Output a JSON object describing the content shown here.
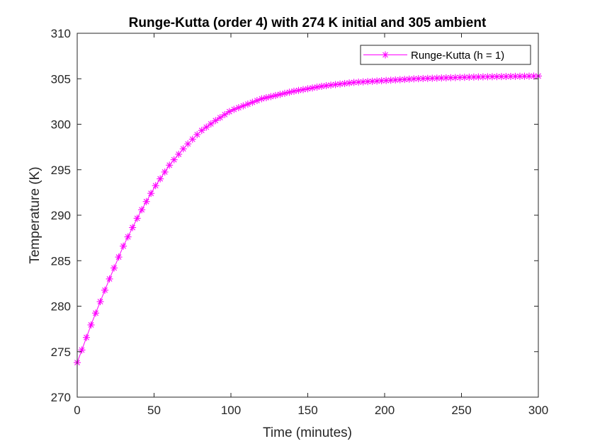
{
  "chart_data": {
    "type": "line",
    "title": "Runge-Kutta (order 4) with 274 K initial and 305 ambient",
    "xlabel": "Time (minutes)",
    "ylabel": "Temperature (K)",
    "xlim": [
      0,
      300
    ],
    "ylim": [
      270,
      310
    ],
    "xticks": [
      0,
      50,
      100,
      150,
      200,
      250,
      300
    ],
    "yticks": [
      270,
      275,
      280,
      285,
      290,
      295,
      300,
      305,
      310
    ],
    "xtick_labels": [
      "0",
      "50",
      "100",
      "150",
      "200",
      "250",
      "300"
    ],
    "ytick_labels": [
      "270",
      "275",
      "280",
      "285",
      "290",
      "295",
      "300",
      "305",
      "310"
    ],
    "grid": false,
    "legend": {
      "location": "top-right",
      "entries": [
        "Runge-Kutta (h = 1)"
      ]
    },
    "series": [
      {
        "name": "Runge-Kutta (h = 1)",
        "color": "#ff00ff",
        "marker": "asterisk",
        "x_start": 0,
        "x_end": 300,
        "x_step": 3,
        "x": [
          0,
          10,
          20,
          30,
          40,
          50,
          60,
          70,
          80,
          90,
          100,
          120,
          140,
          160,
          180,
          200,
          220,
          240,
          260,
          280,
          300
        ],
        "values": [
          273.8,
          278.4,
          282.6,
          286.6,
          290.0,
          293.0,
          295.5,
          297.5,
          299.2,
          300.4,
          301.5,
          302.8,
          303.6,
          304.2,
          304.6,
          304.8,
          305.0,
          305.1,
          305.2,
          305.25,
          305.3
        ]
      }
    ]
  }
}
